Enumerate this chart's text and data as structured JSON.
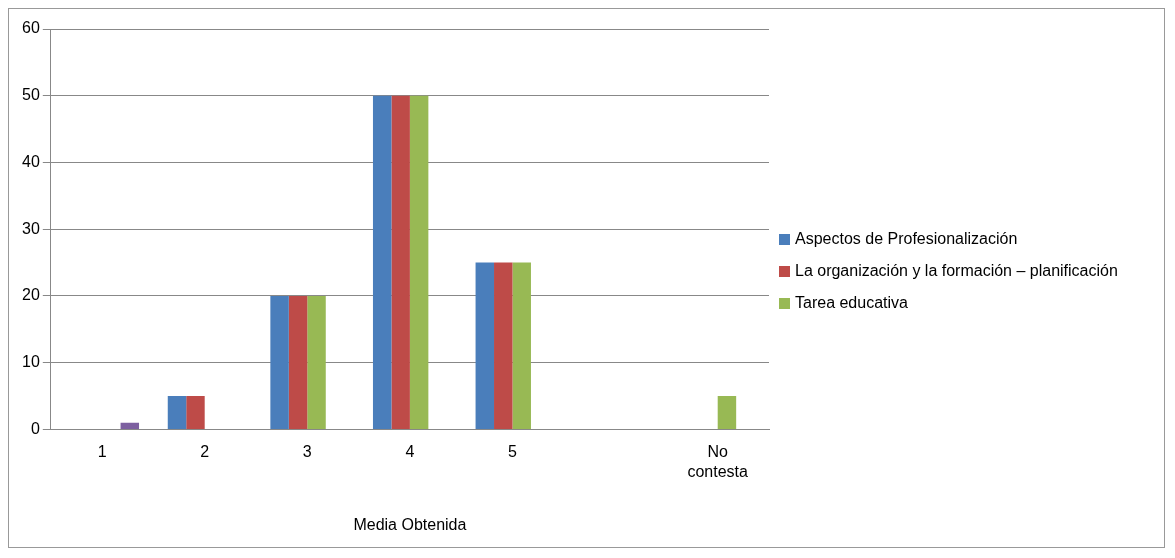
{
  "chart_data": {
    "type": "bar",
    "xlabel": "Media Obtenida",
    "categories": [
      "1",
      "2",
      "3",
      "4",
      "5",
      null,
      "No contesta"
    ],
    "series": [
      {
        "name": "Aspectos de Profesionalización",
        "color": "#4a7ebb",
        "values": [
          null,
          5,
          20,
          50,
          25,
          null,
          null
        ]
      },
      {
        "name": "La organización y la formación – planificación",
        "color": "#be4b48",
        "values": [
          null,
          5,
          20,
          50,
          25,
          null,
          null
        ]
      },
      {
        "name": "Tarea educativa",
        "color": "#98b954",
        "values": [
          null,
          null,
          20,
          50,
          25,
          null,
          5
        ]
      },
      {
        "color": "#7d60a0",
        "values": [
          1,
          null,
          null,
          null,
          null,
          null,
          null
        ]
      }
    ],
    "ylim": [
      0,
      60
    ],
    "yticks": [
      0,
      10,
      20,
      30,
      40,
      50,
      60
    ],
    "grid": "y",
    "legend": "right"
  }
}
